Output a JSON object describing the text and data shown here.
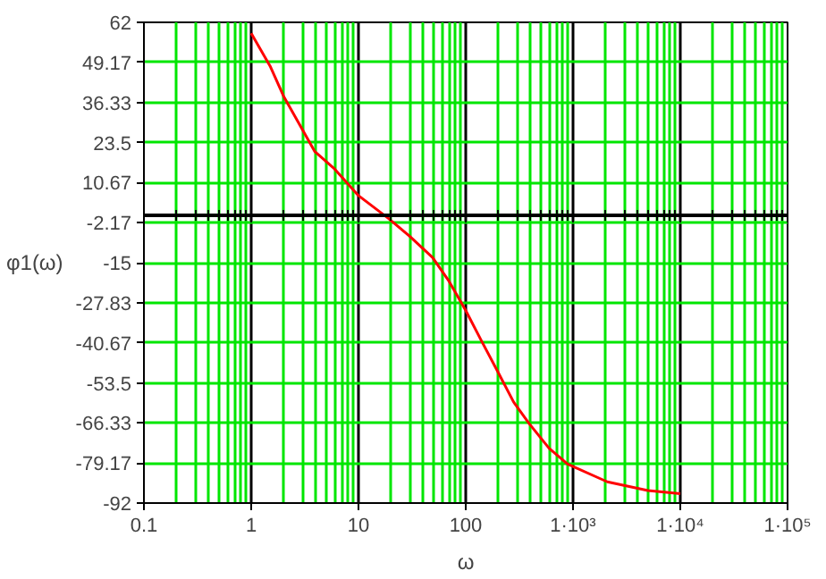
{
  "chart_data": {
    "type": "line",
    "xlabel": "ω",
    "ylabel": "φ1(ω)",
    "log": "x",
    "x": [
      1,
      1.5,
      2,
      3.9,
      6,
      10,
      19,
      30,
      49,
      70,
      100,
      140,
      196,
      280,
      389,
      600,
      890,
      2090,
      5000,
      10000
    ],
    "series": [
      {
        "color": "#ff0000",
        "values": [
          58.5,
          48,
          38.4,
          20.7,
          15,
          6.5,
          -0.8,
          -6.5,
          -13.3,
          -21,
          -30.3,
          -40,
          -49.5,
          -59.7,
          -66.5,
          -74.5,
          -79.5,
          -85.2,
          -88,
          -89
        ]
      }
    ],
    "xlim": [
      0.1,
      100000
    ],
    "ylim": [
      -92,
      62
    ],
    "xticks": [
      0.1,
      1,
      10,
      100,
      {
        "value": 1000,
        "label": "1·10³"
      },
      {
        "value": 10000,
        "label": "1·10⁴"
      },
      {
        "value": 100000,
        "label": "1·10⁵"
      }
    ],
    "yticks": [
      62,
      49.17,
      36.33,
      23.5,
      10.67,
      -2.17,
      -15,
      -27.83,
      -40.67,
      -53.5,
      -66.33,
      -79.17,
      -92
    ],
    "grid": true,
    "line_style": "solid",
    "marker": "none"
  }
}
